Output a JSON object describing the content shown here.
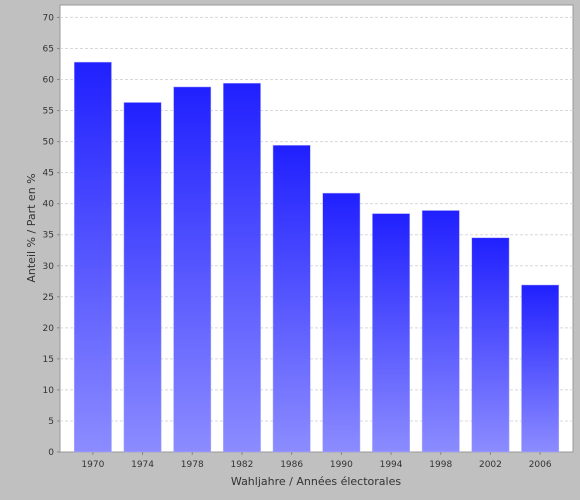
{
  "chart_data": {
    "type": "bar",
    "categories": [
      "1970",
      "1974",
      "1978",
      "1982",
      "1986",
      "1990",
      "1994",
      "1998",
      "2002",
      "2006"
    ],
    "values": [
      62.8,
      56.3,
      58.8,
      59.4,
      49.4,
      41.7,
      38.4,
      38.9,
      34.5,
      26.9
    ],
    "title": "",
    "xlabel": "Wahljahre / Années électorales",
    "ylabel": "Anteil % / Part en %",
    "ylim": [
      0,
      72
    ],
    "yticks": [
      0,
      5,
      10,
      15,
      20,
      25,
      30,
      35,
      40,
      45,
      50,
      55,
      60,
      65,
      70
    ],
    "grid": true,
    "bar_color_top": "#2020ff",
    "bar_color_bottom": "#8c8cff"
  }
}
